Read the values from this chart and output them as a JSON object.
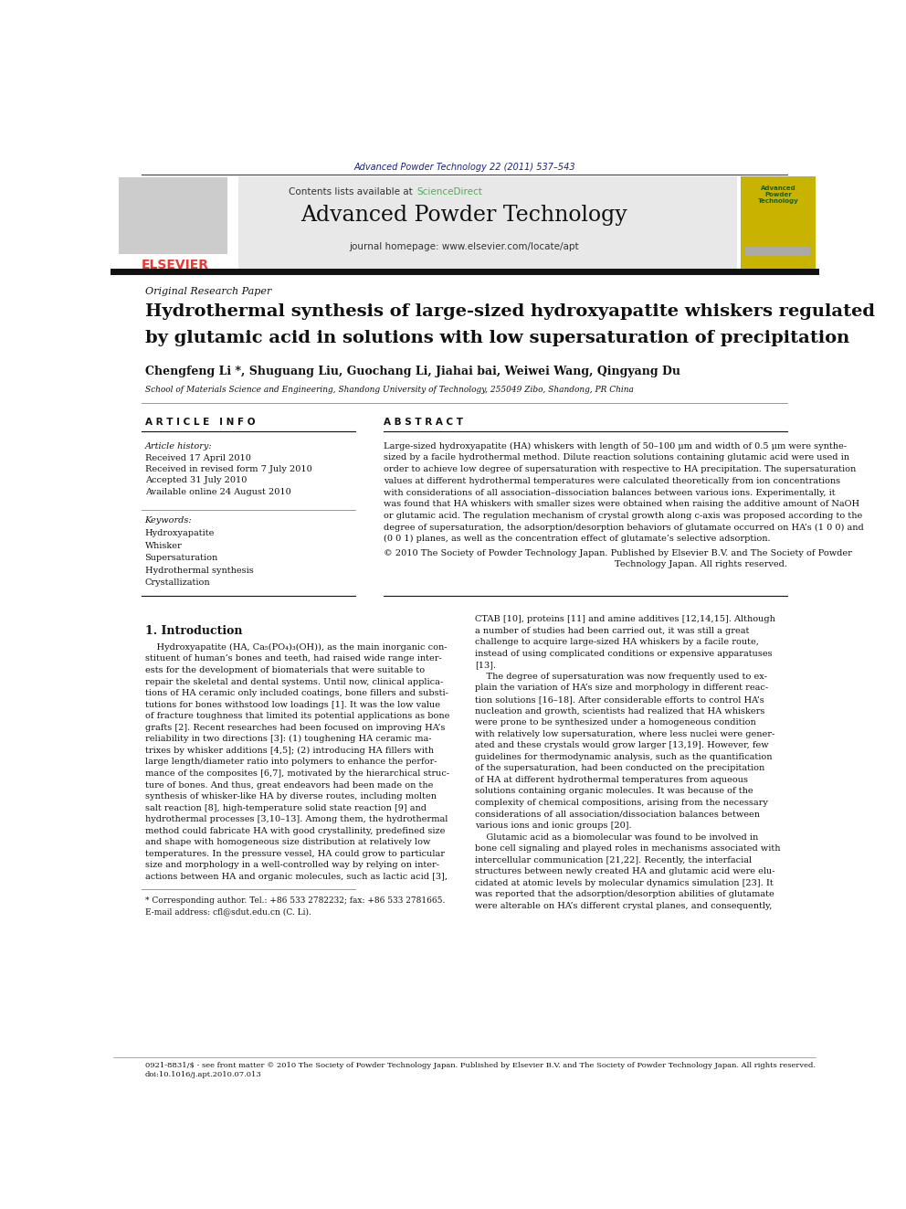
{
  "page_width": 9.92,
  "page_height": 13.23,
  "background_color": "#ffffff",
  "journal_ref": "Advanced Powder Technology 22 (2011) 537–543",
  "journal_ref_color": "#1a237e",
  "sciencedirect_color": "#4caf50",
  "journal_name": "Advanced Powder Technology",
  "journal_homepage": "journal homepage: www.elsevier.com/locate/apt",
  "header_bg": "#e8e8e8",
  "original_research_paper": "Original Research Paper",
  "title_line1": "Hydrothermal synthesis of large-sized hydroxyapatite whiskers regulated",
  "title_line2": "by glutamic acid in solutions with low supersaturation of precipitation",
  "authors": "Chengfeng Li *, Shuguang Liu, Guochang Li, Jiahai bai, Weiwei Wang, Qingyang Du",
  "affiliation": "School of Materials Science and Engineering, Shandong University of Technology, 255049 Zibo, Shandong, PR China",
  "article_info_header": "A R T I C L E   I N F O",
  "abstract_header": "A B S T R A C T",
  "article_history_label": "Article history:",
  "received": "Received 17 April 2010",
  "received_revised": "Received in revised form 7 July 2010",
  "accepted": "Accepted 31 July 2010",
  "available": "Available online 24 August 2010",
  "keywords_label": "Keywords:",
  "keywords": [
    "Hydroxyapatite",
    "Whisker",
    "Supersaturation",
    "Hydrothermal synthesis",
    "Crystallization"
  ],
  "abstract_lines": [
    "Large-sized hydroxyapatite (HA) whiskers with length of 50–100 μm and width of 0.5 μm were synthe-",
    "sized by a facile hydrothermal method. Dilute reaction solutions containing glutamic acid were used in",
    "order to achieve low degree of supersaturation with respective to HA precipitation. The supersaturation",
    "values at different hydrothermal temperatures were calculated theoretically from ion concentrations",
    "with considerations of all association–dissociation balances between various ions. Experimentally, it",
    "was found that HA whiskers with smaller sizes were obtained when raising the additive amount of NaOH",
    "or glutamic acid. The regulation mechanism of crystal growth along c-axis was proposed according to the",
    "degree of supersaturation, the adsorption/desorption behaviors of glutamate occurred on HA’s (1 0 0) and",
    "(0 0 1) planes, as well as the concentration effect of glutamate’s selective adsorption."
  ],
  "copyright_line1": "© 2010 The Society of Powder Technology Japan. Published by Elsevier B.V. and The Society of Powder",
  "copyright_line2": "Technology Japan. All rights reserved.",
  "section1_header": "1. Introduction",
  "intro_left": [
    "    Hydroxyapatite (HA, Ca₅(PO₄)₃(OH)), as the main inorganic con-",
    "stituent of human’s bones and teeth, had raised wide range inter-",
    "ests for the development of biomaterials that were suitable to",
    "repair the skeletal and dental systems. Until now, clinical applica-",
    "tions of HA ceramic only included coatings, bone fillers and substi-",
    "tutions for bones withstood low loadings [1]. It was the low value",
    "of fracture toughness that limited its potential applications as bone",
    "grafts [2]. Recent researches had been focused on improving HA’s",
    "reliability in two directions [3]: (1) toughening HA ceramic ma-",
    "trixes by whisker additions [4,5]; (2) introducing HA fillers with",
    "large length/diameter ratio into polymers to enhance the perfor-",
    "mance of the composites [6,7], motivated by the hierarchical struc-",
    "ture of bones. And thus, great endeavors had been made on the",
    "synthesis of whisker-like HA by diverse routes, including molten",
    "salt reaction [8], high-temperature solid state reaction [9] and",
    "hydrothermal processes [3,10–13]. Among them, the hydrothermal",
    "method could fabricate HA with good crystallinity, predefined size",
    "and shape with homogeneous size distribution at relatively low",
    "temperatures. In the pressure vessel, HA could grow to particular",
    "size and morphology in a well-controlled way by relying on inter-",
    "actions between HA and organic molecules, such as lactic acid [3],"
  ],
  "intro_right": [
    "CTAB [10], proteins [11] and amine additives [12,14,15]. Although",
    "a number of studies had been carried out, it was still a great",
    "challenge to acquire large-sized HA whiskers by a facile route,",
    "instead of using complicated conditions or expensive apparatuses",
    "[13].",
    "    The degree of supersaturation was now frequently used to ex-",
    "plain the variation of HA’s size and morphology in different reac-",
    "tion solutions [16–18]. After considerable efforts to control HA’s",
    "nucleation and growth, scientists had realized that HA whiskers",
    "were prone to be synthesized under a homogeneous condition",
    "with relatively low supersaturation, where less nuclei were gener-",
    "ated and these crystals would grow larger [13,19]. However, few",
    "guidelines for thermodynamic analysis, such as the quantification",
    "of the supersaturation, had been conducted on the precipitation",
    "of HA at different hydrothermal temperatures from aqueous",
    "solutions containing organic molecules. It was because of the",
    "complexity of chemical compositions, arising from the necessary",
    "considerations of all association/dissociation balances between",
    "various ions and ionic groups [20].",
    "    Glutamic acid as a biomolecular was found to be involved in",
    "bone cell signaling and played roles in mechanisms associated with",
    "intercellular communication [21,22]. Recently, the interfacial",
    "structures between newly created HA and glutamic acid were elu-",
    "cidated at atomic levels by molecular dynamics simulation [23]. It",
    "was reported that the adsorption/desorption abilities of glutamate",
    "were alterable on HA’s different crystal planes, and consequently,"
  ],
  "footnote_star": "* Corresponding author. Tel.: +86 533 2782232; fax: +86 533 2781665.",
  "footnote_email": "E-mail address: cfl@sdut.edu.cn (C. Li).",
  "footer_line1": "0921-8831/$ - see front matter © 2010 The Society of Powder Technology Japan. Published by Elsevier B.V. and The Society of Powder Technology Japan. All rights reserved.",
  "footer_line2": "doi:10.1016/j.apt.2010.07.013",
  "elsevier_color": "#e53935",
  "journal_cover_bg": "#c8b400",
  "text_color": "#111111"
}
